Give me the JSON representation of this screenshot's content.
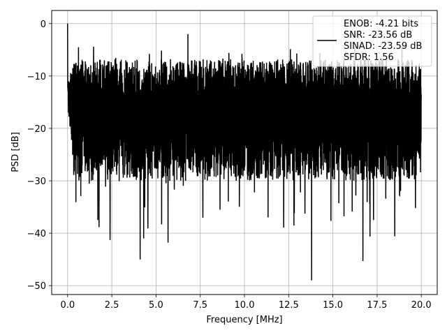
{
  "chart_data": {
    "type": "line",
    "title": "",
    "xlabel": "Frequency [MHz]",
    "ylabel": "PSD [dB]",
    "xlim": [
      -0.9,
      20.9
    ],
    "ylim": [
      -51.7,
      2.5
    ],
    "x_ticks": [
      0.0,
      2.5,
      5.0,
      7.5,
      10.0,
      12.5,
      15.0,
      17.5,
      20.0
    ],
    "x_tick_labels": [
      "0.0",
      "2.5",
      "5.0",
      "7.5",
      "10.0",
      "12.5",
      "15.0",
      "17.5",
      "20.0"
    ],
    "y_ticks": [
      0,
      -10,
      -20,
      -30,
      -40,
      -50
    ],
    "y_tick_labels": [
      "0",
      "−10",
      "−20",
      "−30",
      "−40",
      "−50"
    ],
    "grid": true,
    "legend_position": "top-right",
    "legend_lines": [
      "ENOB: -4.21 bits",
      "SNR: -23.56 dB",
      "SINAD: -23.59 dB",
      "SFDR: 1.56"
    ],
    "series": [
      {
        "color": "#000000",
        "x_range": [
          0.0,
          20.0
        ],
        "notable_points": [
          {
            "x": 0.0,
            "y": 0.0
          },
          {
            "x": 0.05,
            "y": -17.0
          },
          {
            "x": 2.4,
            "y": -41.3
          },
          {
            "x": 4.1,
            "y": -45.0
          },
          {
            "x": 4.3,
            "y": -41.0
          },
          {
            "x": 6.8,
            "y": -2.0
          },
          {
            "x": 13.8,
            "y": -49.0
          },
          {
            "x": 16.7,
            "y": -45.3
          },
          {
            "x": 20.0,
            "y": -14.0
          }
        ],
        "typical_top": -10,
        "typical_bottom": -26
      }
    ]
  }
}
